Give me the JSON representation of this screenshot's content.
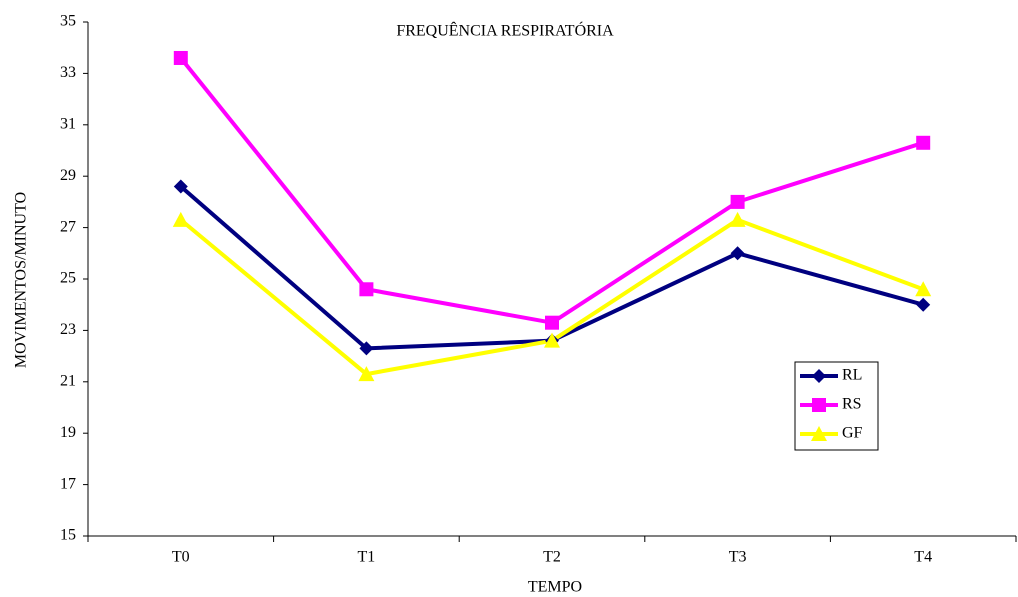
{
  "chart_data": {
    "type": "line",
    "title": "FREQUÊNCIA RESPIRATÓRIA",
    "x_label": "TEMPO",
    "y_label": "MOVIMENTOS/MINUTO",
    "categories": [
      "T0",
      "T1",
      "T2",
      "T3",
      "T4"
    ],
    "series": [
      {
        "name": "RL",
        "color": "#000080",
        "marker": "diamond",
        "values": [
          28.6,
          22.3,
          22.6,
          26.0,
          24.0
        ]
      },
      {
        "name": "RS",
        "color": "#ff00ff",
        "marker": "square",
        "values": [
          33.6,
          24.6,
          23.3,
          28.0,
          30.3
        ]
      },
      {
        "name": "GF",
        "color": "#ffff00",
        "marker": "triangle",
        "values": [
          27.3,
          21.3,
          22.6,
          27.3,
          24.6
        ]
      }
    ],
    "ylim": [
      15,
      35
    ],
    "yticks": [
      15,
      17,
      19,
      21,
      23,
      25,
      27,
      29,
      31,
      33,
      35
    ],
    "grid": false,
    "legend": "right"
  }
}
